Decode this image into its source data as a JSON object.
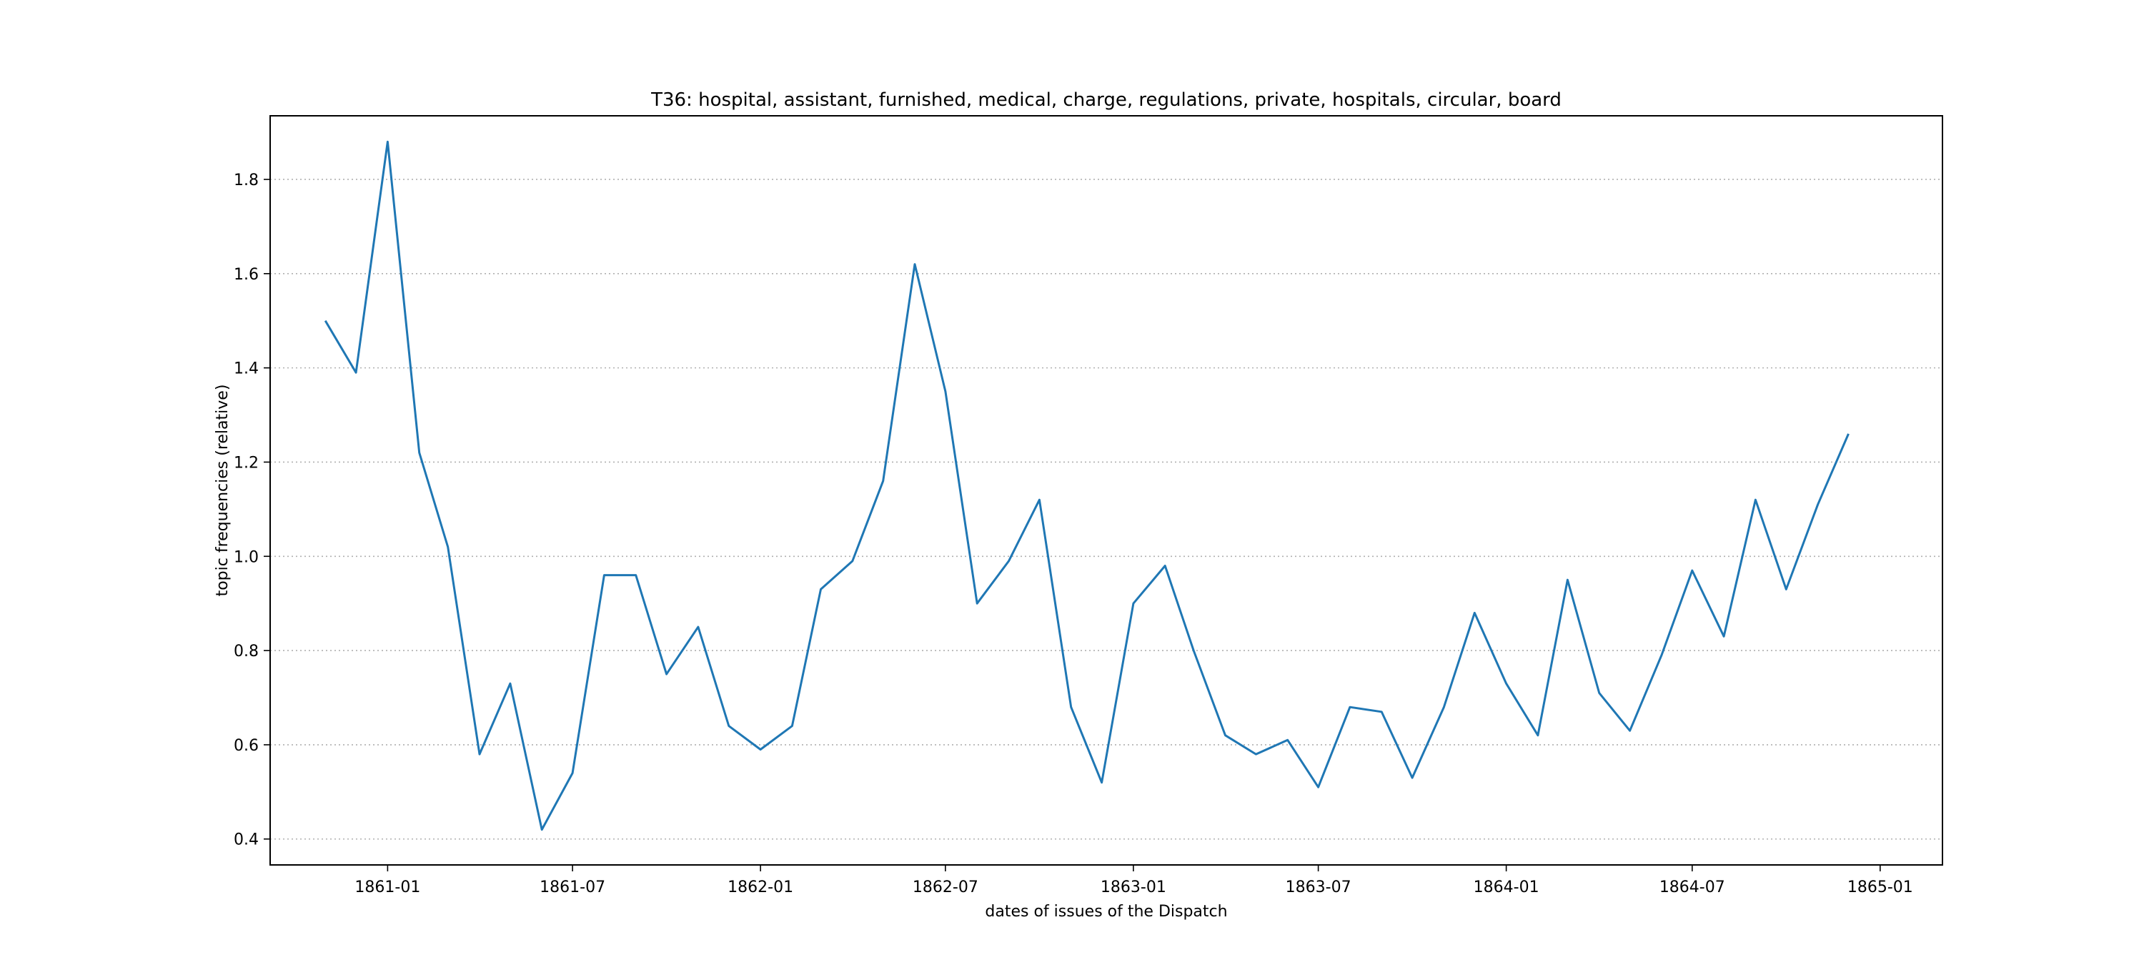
{
  "chart_data": {
    "type": "line",
    "title": "T36: hospital, assistant, furnished, medical, charge, regulations, private, hospitals, circular, board",
    "xlabel": "dates of issues of the Dispatch",
    "ylabel": "topic frequencies (relative)",
    "x_ticks": [
      "1861-01",
      "1861-07",
      "1862-01",
      "1862-07",
      "1863-01",
      "1863-07",
      "1864-01",
      "1864-07",
      "1865-01"
    ],
    "y_ticks": [
      "0.4",
      "0.6",
      "0.8",
      "1.0",
      "1.2",
      "1.4",
      "1.6",
      "1.8"
    ],
    "xlim": [
      "1860-09-08",
      "1865-03-03"
    ],
    "ylim": [
      0.345,
      1.935
    ],
    "grid": "y-dotted",
    "color": "#1f77b4",
    "series": [
      {
        "x": [
          "1860-11",
          "1860-12",
          "1861-01",
          "1861-02",
          "1861-03",
          "1861-04",
          "1861-05",
          "1861-06",
          "1861-07",
          "1861-08",
          "1861-09",
          "1861-10",
          "1861-11",
          "1861-12",
          "1862-01",
          "1862-02",
          "1862-03",
          "1862-04",
          "1862-05",
          "1862-06",
          "1862-07",
          "1862-08",
          "1862-09",
          "1862-10",
          "1862-11",
          "1862-12",
          "1863-01",
          "1863-02",
          "1863-03",
          "1863-04",
          "1863-05",
          "1863-06",
          "1863-07",
          "1863-08",
          "1863-09",
          "1863-10",
          "1863-11",
          "1863-12",
          "1864-01",
          "1864-02",
          "1864-03",
          "1864-04",
          "1864-05",
          "1864-06",
          "1864-07",
          "1864-08",
          "1864-09",
          "1864-10",
          "1864-11",
          "1864-12"
        ],
        "values": [
          1.5,
          1.39,
          1.88,
          1.22,
          1.02,
          0.58,
          0.73,
          0.42,
          0.54,
          0.96,
          0.96,
          0.75,
          0.85,
          0.64,
          0.59,
          0.64,
          0.93,
          0.99,
          1.16,
          1.62,
          1.35,
          0.9,
          0.99,
          1.12,
          0.68,
          0.52,
          0.9,
          0.98,
          0.8,
          0.62,
          0.58,
          0.61,
          0.51,
          0.68,
          0.67,
          0.53,
          0.68,
          0.88,
          0.73,
          0.62,
          0.95,
          0.71,
          0.63,
          0.79,
          0.97,
          0.83,
          1.12,
          0.93,
          1.11,
          1.26
        ]
      }
    ]
  }
}
